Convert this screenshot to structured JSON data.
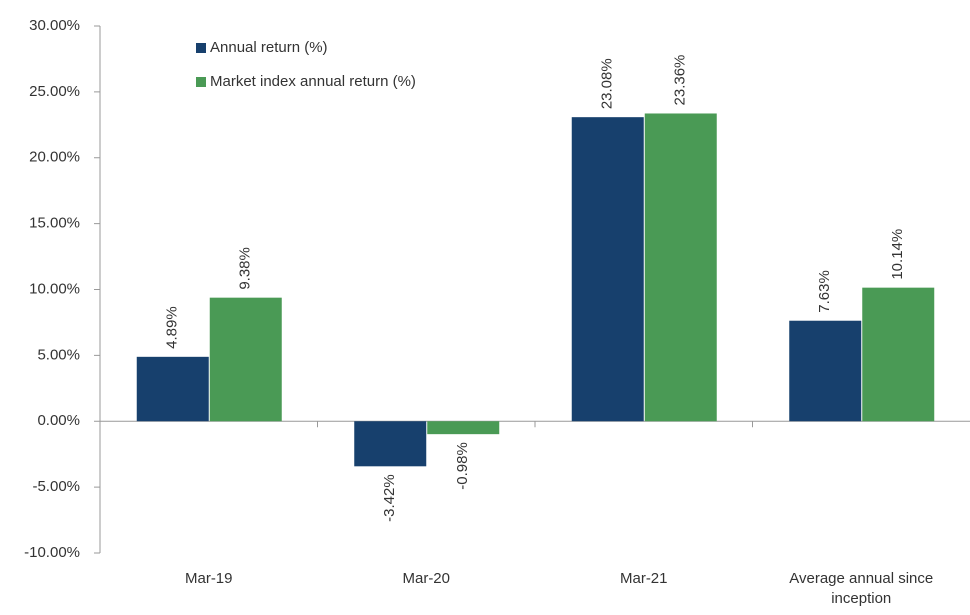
{
  "chart_data": {
    "type": "bar",
    "categories": [
      "Mar-19",
      "Mar-20",
      "Mar-21",
      "Average annual since inception"
    ],
    "series": [
      {
        "name": "Annual return (%)",
        "color": "#17406d",
        "values": [
          4.89,
          -3.42,
          23.08,
          7.63
        ],
        "value_labels": [
          "4.89%",
          "-3.42%",
          "23.08%",
          "7.63%"
        ]
      },
      {
        "name": "Market index annual return (%)",
        "color": "#4a9a55",
        "values": [
          9.38,
          -0.98,
          23.36,
          10.14
        ],
        "value_labels": [
          "9.38%",
          "-0.98%",
          "23.36%",
          "10.14%"
        ]
      }
    ],
    "ylim": [
      -10,
      30
    ],
    "yticks": [
      {
        "value": -10,
        "label": "-10.00%"
      },
      {
        "value": -5,
        "label": "-5.00%"
      },
      {
        "value": 0,
        "label": "0.00%"
      },
      {
        "value": 5,
        "label": "5.00%"
      },
      {
        "value": 10,
        "label": "10.00%"
      },
      {
        "value": 15,
        "label": "15.00%"
      },
      {
        "value": 20,
        "label": "20.00%"
      },
      {
        "value": 25,
        "label": "25.00%"
      },
      {
        "value": 30,
        "label": "30.00%"
      }
    ],
    "grid": false,
    "legend": "top-left"
  }
}
